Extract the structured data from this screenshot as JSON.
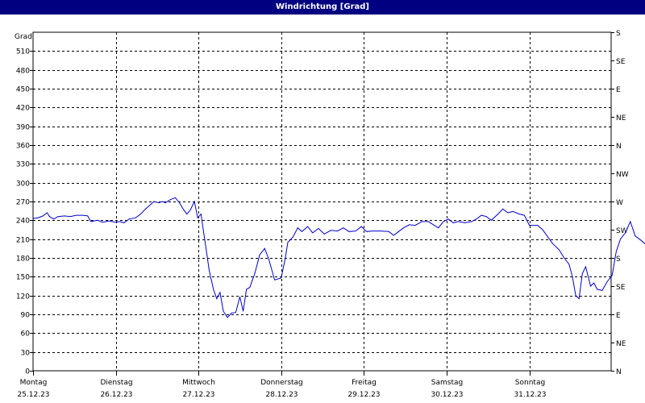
{
  "window": {
    "title": "Windrichtung [Grad]"
  },
  "colors": {
    "title_bar": "#000080",
    "line": "#0000cc",
    "grid": "#000000",
    "background": "#ffffff"
  },
  "chart_data": {
    "type": "line",
    "title": "Windrichtung [Grad]",
    "ylabel": "Grad",
    "ylim": [
      0,
      540
    ],
    "y_ticks": [
      0,
      30,
      60,
      90,
      120,
      150,
      180,
      210,
      240,
      270,
      300,
      330,
      360,
      390,
      420,
      450,
      480,
      510
    ],
    "y2_ticks": [
      "N",
      "NE",
      "E",
      "SE",
      "S",
      "SW",
      "W",
      "NW",
      "N",
      "NE",
      "E",
      "SE",
      "S"
    ],
    "x_labels": [
      {
        "day": "Montag",
        "date": "25.12.23"
      },
      {
        "day": "Dienstag",
        "date": "26.12.23"
      },
      {
        "day": "Mittwoch",
        "date": "27.12.23"
      },
      {
        "day": "Donnerstag",
        "date": "28.12.23"
      },
      {
        "day": "Freitag",
        "date": "29.12.23"
      },
      {
        "day": "Samstag",
        "date": "30.12.23"
      },
      {
        "day": "Sonntag",
        "date": "31.12.23"
      }
    ],
    "x_range_days": [
      0,
      7
    ],
    "grid": true,
    "series": [
      {
        "points": [
          [
            0.0,
            243
          ],
          [
            0.06,
            244
          ],
          [
            0.12,
            247
          ],
          [
            0.17,
            252
          ],
          [
            0.2,
            246
          ],
          [
            0.25,
            242
          ],
          [
            0.3,
            246
          ],
          [
            0.38,
            247
          ],
          [
            0.45,
            246
          ],
          [
            0.52,
            248
          ],
          [
            0.6,
            248
          ],
          [
            0.66,
            247
          ],
          [
            0.7,
            238
          ],
          [
            0.78,
            240
          ],
          [
            0.84,
            237
          ],
          [
            0.92,
            239
          ],
          [
            1.0,
            237
          ],
          [
            1.05,
            238
          ],
          [
            1.1,
            236
          ],
          [
            1.16,
            242
          ],
          [
            1.24,
            244
          ],
          [
            1.3,
            250
          ],
          [
            1.36,
            258
          ],
          [
            1.42,
            265
          ],
          [
            1.46,
            270
          ],
          [
            1.52,
            268
          ],
          [
            1.56,
            270
          ],
          [
            1.6,
            268
          ],
          [
            1.66,
            273
          ],
          [
            1.72,
            276
          ],
          [
            1.77,
            268
          ],
          [
            1.82,
            257
          ],
          [
            1.86,
            250
          ],
          [
            1.9,
            256
          ],
          [
            1.95,
            270
          ],
          [
            1.99,
            244
          ],
          [
            2.03,
            250
          ],
          [
            2.08,
            205
          ],
          [
            2.13,
            160
          ],
          [
            2.18,
            130
          ],
          [
            2.22,
            115
          ],
          [
            2.26,
            125
          ],
          [
            2.3,
            95
          ],
          [
            2.35,
            85
          ],
          [
            2.4,
            92
          ],
          [
            2.45,
            93
          ],
          [
            2.5,
            118
          ],
          [
            2.54,
            95
          ],
          [
            2.58,
            130
          ],
          [
            2.62,
            133
          ],
          [
            2.68,
            155
          ],
          [
            2.74,
            185
          ],
          [
            2.8,
            195
          ],
          [
            2.85,
            178
          ],
          [
            2.92,
            145
          ],
          [
            3.0,
            148
          ],
          [
            3.05,
            180
          ],
          [
            3.08,
            205
          ],
          [
            3.14,
            213
          ],
          [
            3.2,
            228
          ],
          [
            3.25,
            222
          ],
          [
            3.32,
            230
          ],
          [
            3.38,
            220
          ],
          [
            3.45,
            227
          ],
          [
            3.52,
            218
          ],
          [
            3.6,
            224
          ],
          [
            3.68,
            223
          ],
          [
            3.75,
            228
          ],
          [
            3.82,
            222
          ],
          [
            3.9,
            223
          ],
          [
            3.97,
            230
          ],
          [
            4.03,
            222
          ],
          [
            4.1,
            223
          ],
          [
            4.2,
            223
          ],
          [
            4.3,
            222
          ],
          [
            4.36,
            216
          ],
          [
            4.42,
            222
          ],
          [
            4.48,
            228
          ],
          [
            4.55,
            233
          ],
          [
            4.62,
            232
          ],
          [
            4.7,
            238
          ],
          [
            4.78,
            238
          ],
          [
            4.85,
            232
          ],
          [
            4.9,
            228
          ],
          [
            4.96,
            238
          ],
          [
            5.02,
            242
          ],
          [
            5.08,
            236
          ],
          [
            5.14,
            238
          ],
          [
            5.22,
            236
          ],
          [
            5.3,
            238
          ],
          [
            5.36,
            242
          ],
          [
            5.42,
            248
          ],
          [
            5.48,
            246
          ],
          [
            5.54,
            240
          ],
          [
            5.62,
            250
          ],
          [
            5.68,
            258
          ],
          [
            5.74,
            252
          ],
          [
            5.8,
            254
          ],
          [
            5.88,
            250
          ],
          [
            5.94,
            248
          ],
          [
            6.0,
            232
          ],
          [
            6.1,
            232
          ],
          [
            6.16,
            225
          ],
          [
            6.22,
            214
          ],
          [
            6.28,
            203
          ],
          [
            6.36,
            193
          ],
          [
            6.42,
            180
          ],
          [
            6.48,
            170
          ],
          [
            6.52,
            150
          ],
          [
            6.56,
            120
          ],
          [
            6.6,
            115
          ],
          [
            6.64,
            155
          ],
          [
            6.68,
            166
          ],
          [
            6.74,
            135
          ],
          [
            6.78,
            140
          ],
          [
            6.82,
            130
          ],
          [
            6.88,
            128
          ],
          [
            6.94,
            142
          ],
          [
            7.0,
            152
          ],
          [
            7.05,
            190
          ],
          [
            7.1,
            210
          ],
          [
            7.16,
            220
          ],
          [
            7.22,
            238
          ],
          [
            7.28,
            215
          ],
          [
            7.35,
            208
          ],
          [
            7.42,
            200
          ],
          [
            7.48,
            210
          ],
          [
            7.55,
            212
          ],
          [
            7.62,
            213
          ],
          [
            7.68,
            214
          ]
        ]
      }
    ]
  }
}
